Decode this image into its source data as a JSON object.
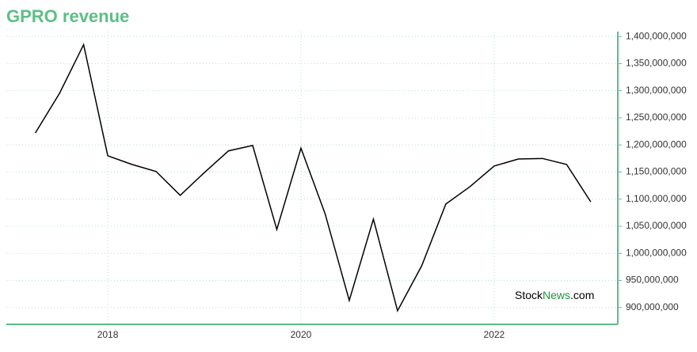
{
  "chart_data": {
    "type": "line",
    "title": "GPRO revenue",
    "x": [
      2017.25,
      2017.5,
      2017.75,
      2018,
      2018.25,
      2018.5,
      2018.75,
      2019,
      2019.25,
      2019.5,
      2019.75,
      2020,
      2020.25,
      2020.5,
      2020.75,
      2021,
      2021.25,
      2021.5,
      2021.75,
      2022,
      2022.25,
      2022.5,
      2022.75,
      2023
    ],
    "series": [
      {
        "name": "GPRO revenue",
        "color": "#000000",
        "values": [
          1222000000,
          1295000000,
          1385000000,
          1180000000,
          1164000000,
          1151000000,
          1107000000,
          1149000000,
          1189000000,
          1199000000,
          1044000000,
          1194000000,
          1073000000,
          913000000,
          1063000000,
          894000000,
          977000000,
          1091000000,
          1123000000,
          1161000000,
          1174000000,
          1175000000,
          1164000000,
          1095000000
        ]
      }
    ],
    "xlim": [
      2016.95,
      2023.28
    ],
    "xticks": [
      2018,
      2020,
      2022
    ],
    "ylim": [
      869000000,
      1409000000
    ],
    "yticks": [
      {
        "value": 900000000,
        "label": "900,000,000"
      },
      {
        "value": 950000000,
        "label": "950,000,000"
      },
      {
        "value": 1000000000,
        "label": "1,000,000,000"
      },
      {
        "value": 1050000000,
        "label": "1,050,000,000"
      },
      {
        "value": 1100000000,
        "label": "1,100,000,000"
      },
      {
        "value": 1150000000,
        "label": "1,150,000,000"
      },
      {
        "value": 1200000000,
        "label": "1,200,000,000"
      },
      {
        "value": 1250000000,
        "label": "1,250,000,000"
      },
      {
        "value": 1300000000,
        "label": "1,300,000,000"
      },
      {
        "value": 1350000000,
        "label": "1,350,000,000"
      },
      {
        "value": 1400000000,
        "label": "1,400,000,000"
      }
    ],
    "grid": true,
    "axis_color": "#5cbf85",
    "watermark": {
      "part1": "Stock",
      "part2": "News",
      "part3": ".com"
    }
  }
}
